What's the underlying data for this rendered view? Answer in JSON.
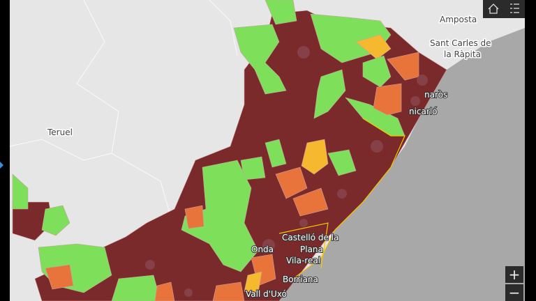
{
  "labels": {
    "amposta": "Amposta",
    "sant_carles_1": "Sant Carles de",
    "sant_carles_2": "la Ràpita",
    "teruel": "Teruel",
    "vinaros": "naròs",
    "benicarlo": "nicarló",
    "castello_1": "Castelló de la",
    "castello_2": "Plana",
    "vila_real": "Vila-real",
    "borriana": "Borriana",
    "onda": "Onda",
    "vall_uixo": "Vall d'Uxó"
  },
  "controls": {
    "zoom_in": "+",
    "zoom_out": "−"
  }
}
